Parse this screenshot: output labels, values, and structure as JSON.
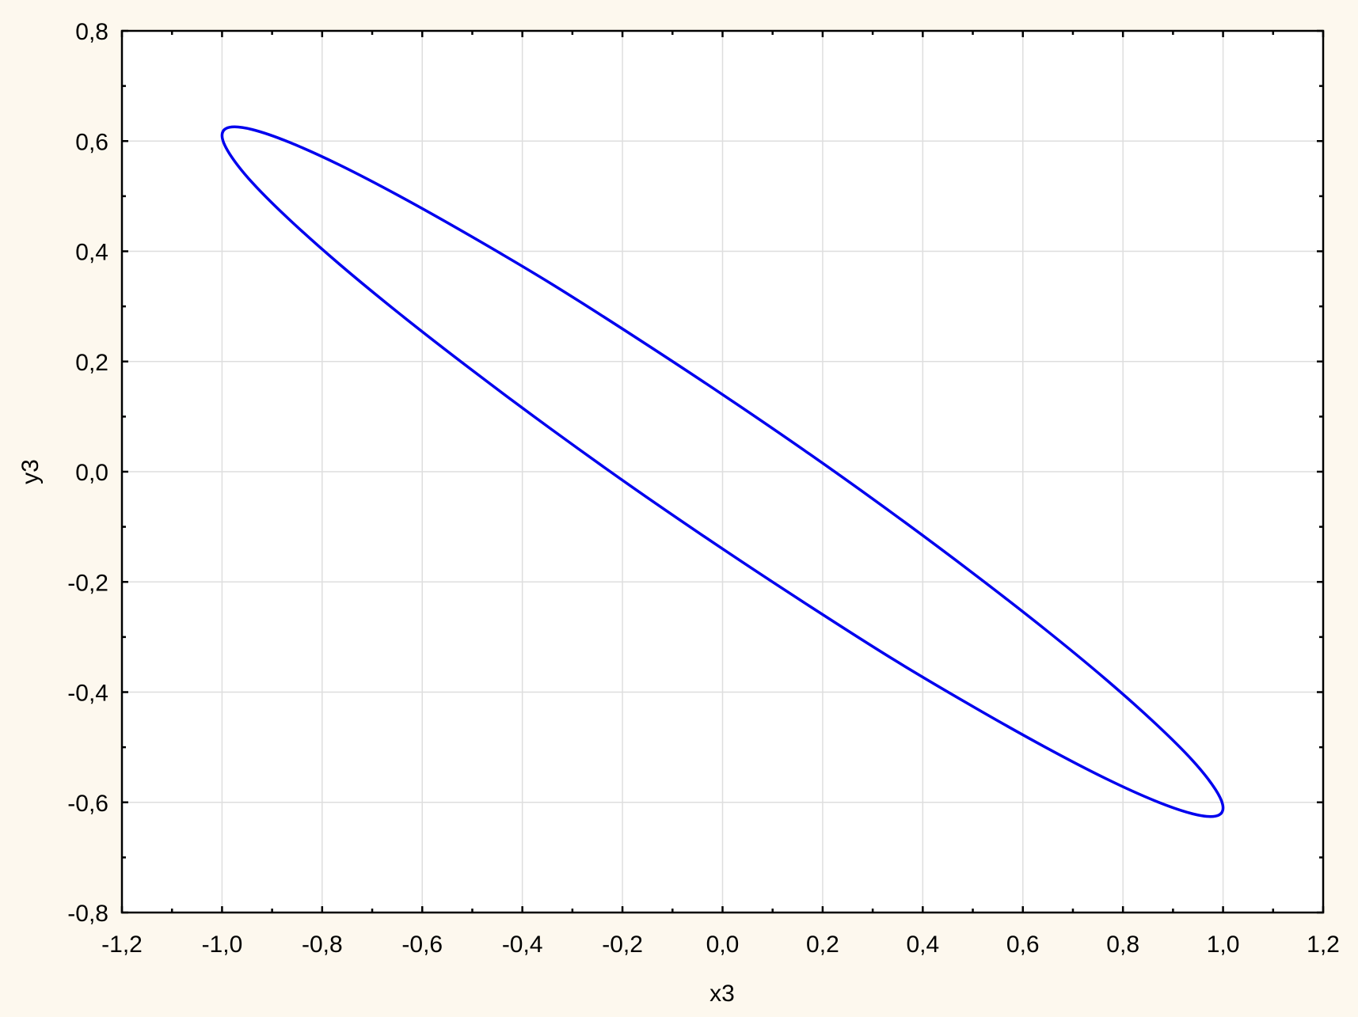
{
  "chart_data": {
    "type": "line",
    "title": "",
    "xlabel": "x3",
    "ylabel": "y3",
    "xlim": [
      -1.2,
      1.2
    ],
    "ylim": [
      -0.8,
      0.8
    ],
    "x_ticks": [
      "-1,2",
      "-1,0",
      "-0,8",
      "-0,6",
      "-0,4",
      "-0,2",
      "0,0",
      "0,2",
      "0,4",
      "0,6",
      "0,8",
      "1,0",
      "1,2"
    ],
    "y_ticks": [
      "0,8",
      "0,6",
      "0,4",
      "0,2",
      "0,0",
      "-0,2",
      "-0,4",
      "-0,6",
      "-0,8"
    ],
    "grid": true,
    "background": "#fdf8ee",
    "plot_background": "#ffffff",
    "series": [
      {
        "color": "#0000ee",
        "closed": true,
        "points": [
          [
            1.0,
            -0.61
          ],
          [
            0.985,
            -0.577
          ],
          [
            0.94,
            -0.525
          ],
          [
            0.866,
            -0.458
          ],
          [
            0.766,
            -0.377
          ],
          [
            0.643,
            -0.285
          ],
          [
            0.5,
            -0.184
          ],
          [
            0.342,
            -0.077
          ],
          [
            0.174,
            0.032
          ],
          [
            0.0,
            0.14
          ],
          [
            -0.174,
            0.244
          ],
          [
            -0.342,
            0.341
          ],
          [
            -0.5,
            0.426
          ],
          [
            -0.643,
            0.499
          ],
          [
            -0.766,
            0.557
          ],
          [
            -0.866,
            0.598
          ],
          [
            -0.94,
            0.621
          ],
          [
            -0.985,
            0.625
          ],
          [
            -1.0,
            0.61
          ],
          [
            -0.985,
            0.577
          ],
          [
            -0.94,
            0.525
          ],
          [
            -0.866,
            0.458
          ],
          [
            -0.766,
            0.377
          ],
          [
            -0.643,
            0.285
          ],
          [
            -0.5,
            0.184
          ],
          [
            -0.342,
            0.077
          ],
          [
            -0.174,
            -0.032
          ],
          [
            0.0,
            -0.14
          ],
          [
            0.174,
            -0.244
          ],
          [
            0.342,
            -0.341
          ],
          [
            0.5,
            -0.426
          ],
          [
            0.643,
            -0.499
          ],
          [
            0.766,
            -0.557
          ],
          [
            0.866,
            -0.598
          ],
          [
            0.94,
            -0.621
          ],
          [
            0.985,
            -0.625
          ]
        ]
      }
    ]
  }
}
